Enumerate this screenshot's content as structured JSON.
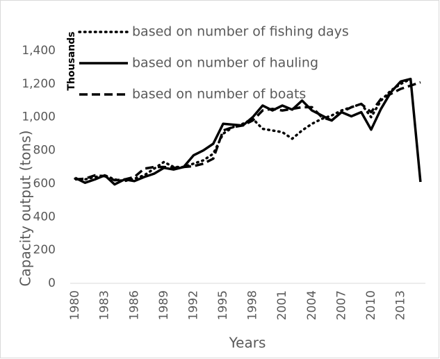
{
  "chart_data": {
    "type": "line",
    "y_axis_label": "Capacity output (tons)",
    "y_unit_label": "Thousands",
    "x_axis_label": "Years",
    "categories": [
      "1980",
      null,
      null,
      "1983",
      null,
      null,
      "1986",
      null,
      null,
      "1989",
      null,
      null,
      "1992",
      null,
      null,
      "1995",
      null,
      null,
      "1998",
      null,
      null,
      "2001",
      null,
      null,
      "2004",
      null,
      null,
      "2007",
      null,
      null,
      "2010",
      null,
      null,
      "2013",
      null,
      null
    ],
    "ylim": [
      0,
      1400
    ],
    "yticks": [
      0,
      200,
      400,
      600,
      800,
      {
        "value": 1000,
        "label": "1,000"
      },
      {
        "value": 1200,
        "label": "1,200"
      },
      {
        "value": 1400,
        "label": "1,400"
      }
    ],
    "grid": false,
    "series": [
      {
        "name": "based on number of fishing days",
        "color": "#000000",
        "style": "dotted",
        "values": [
          630,
          625,
          640,
          650,
          625,
          615,
          630,
          650,
          690,
          730,
          700,
          700,
          720,
          740,
          780,
          900,
          940,
          960,
          990,
          930,
          920,
          910,
          870,
          920,
          960,
          990,
          1010,
          1040,
          1060,
          1080,
          1000,
          1100,
          1160,
          1200,
          1230,
          null
        ]
      },
      {
        "name": "based on number of hauling",
        "color": "#000000",
        "style": "solid",
        "values": [
          635,
          605,
          625,
          650,
          595,
          625,
          615,
          640,
          660,
          695,
          685,
          700,
          770,
          800,
          840,
          960,
          955,
          950,
          1000,
          1070,
          1040,
          1070,
          1045,
          1100,
          1040,
          1010,
          980,
          1030,
          1005,
          1030,
          925,
          1050,
          1150,
          1215,
          1230,
          610
        ]
      },
      {
        "name": "based on number of boats",
        "color": "#000000",
        "style": "dashed",
        "values": [
          625,
          630,
          650,
          645,
          620,
          625,
          640,
          690,
          700,
          700,
          695,
          700,
          705,
          720,
          750,
          920,
          940,
          950,
          980,
          1040,
          1050,
          1040,
          1050,
          1060,
          1060,
          1000,
          980,
          1030,
          1060,
          1080,
          1030,
          1110,
          1140,
          1170,
          1190,
          1210
        ]
      }
    ]
  }
}
